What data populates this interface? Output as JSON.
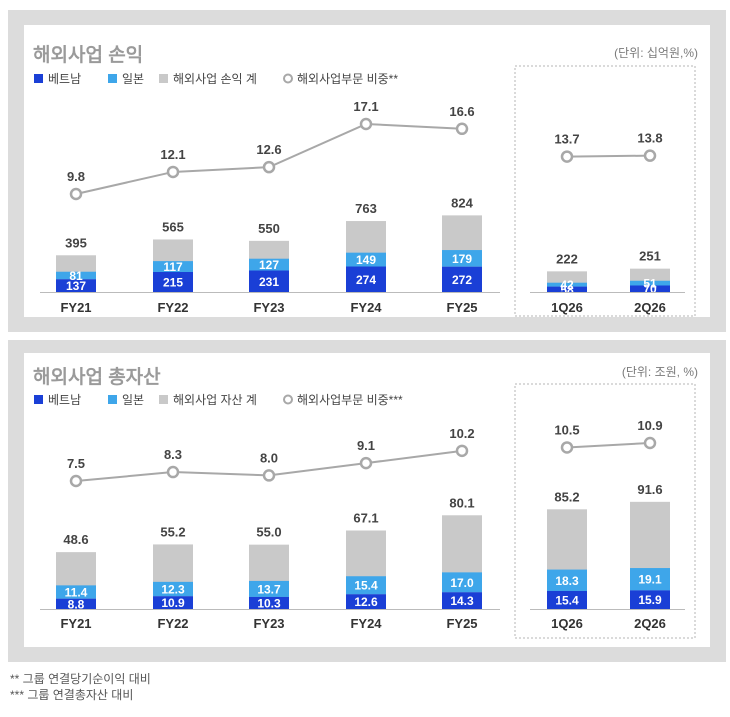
{
  "colors": {
    "vietnam": "#1a3fd6",
    "japan": "#3ea6ea",
    "total": "#c9c9c9",
    "ratio_line": "#a8a8a8",
    "panel_bg": "#dcdcdc"
  },
  "chart_data": [
    {
      "type": "bar",
      "title": "해외사업 손익",
      "unit": "(단위: 십억원,%)",
      "categories": [
        "FY21",
        "FY22",
        "FY23",
        "FY24",
        "FY25",
        "1Q26",
        "2Q26"
      ],
      "legend": [
        "베트남",
        "일본",
        "해외사업 손익 계",
        "해외사업부문 비중**"
      ],
      "series": [
        {
          "name": "베트남",
          "values": [
            137,
            215,
            231,
            274,
            272,
            58,
            70
          ]
        },
        {
          "name": "일본",
          "values": [
            81,
            117,
            127,
            149,
            179,
            42,
            51
          ]
        },
        {
          "name": "해외사업 손익 계",
          "values": [
            395,
            565,
            550,
            763,
            824,
            222,
            251
          ]
        },
        {
          "name": "해외사업부문 비중**",
          "type": "line",
          "values": [
            9.8,
            12.1,
            12.6,
            17.1,
            16.6,
            13.7,
            13.8
          ]
        }
      ]
    },
    {
      "type": "bar",
      "title": "해외사업 총자산",
      "unit": "(단위: 조원, %)",
      "categories": [
        "FY21",
        "FY22",
        "FY23",
        "FY24",
        "FY25",
        "1Q26",
        "2Q26"
      ],
      "legend": [
        "베트남",
        "일본",
        "해외사업 자산 계",
        "해외사업부문 비중***"
      ],
      "series": [
        {
          "name": "베트남",
          "values": [
            8.8,
            10.9,
            10.3,
            12.6,
            14.3,
            15.4,
            15.9
          ]
        },
        {
          "name": "일본",
          "values": [
            11.4,
            12.3,
            13.7,
            15.4,
            17.0,
            18.3,
            19.1
          ]
        },
        {
          "name": "해외사업 자산 계",
          "values": [
            48.6,
            55.2,
            55.0,
            67.1,
            80.1,
            85.2,
            91.6
          ]
        },
        {
          "name": "해외사업부문 비중***",
          "type": "line",
          "values": [
            7.5,
            8.3,
            8.0,
            9.1,
            10.2,
            10.5,
            10.9
          ]
        }
      ]
    }
  ],
  "footnotes": [
    "**   그룹 연결당기순이익 대비",
    "*** 그룹 연결총자산 대비"
  ]
}
